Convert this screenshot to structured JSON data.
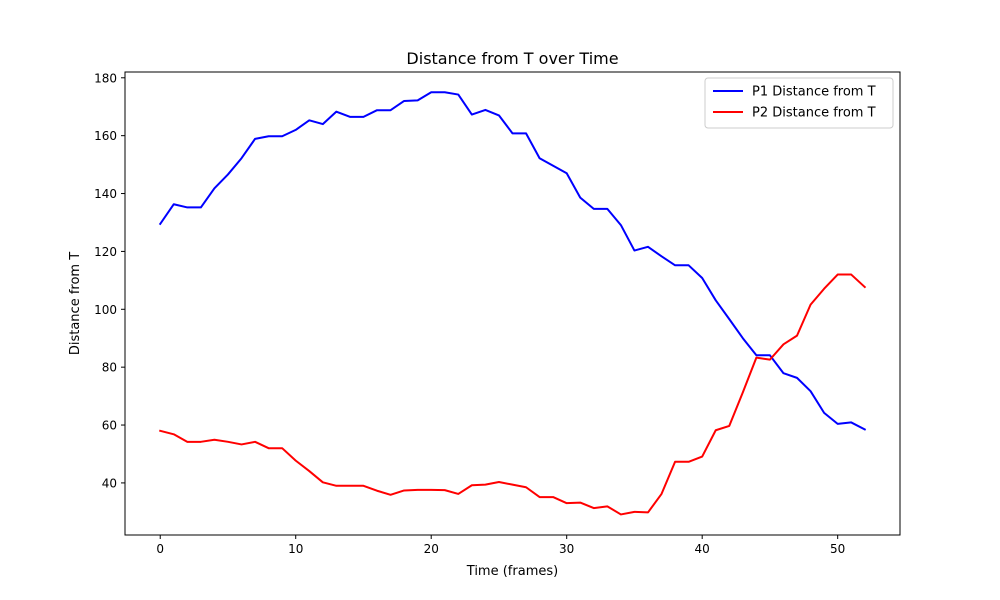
{
  "chart_data": {
    "type": "line",
    "title": "Distance from T over Time",
    "xlabel": "Time (frames)",
    "ylabel": "Distance from T",
    "xlim": [
      -2.6,
      54.6
    ],
    "ylim": [
      22.0,
      182.0
    ],
    "xticks": [
      0,
      10,
      20,
      30,
      40,
      50
    ],
    "yticks": [
      40,
      60,
      80,
      100,
      120,
      140,
      160,
      180
    ],
    "grid": false,
    "legend_position": "top-right",
    "x": [
      0,
      1,
      2,
      3,
      4,
      5,
      6,
      7,
      8,
      9,
      10,
      11,
      12,
      13,
      14,
      15,
      16,
      17,
      18,
      19,
      20,
      21,
      22,
      23,
      24,
      25,
      26,
      27,
      28,
      29,
      30,
      31,
      32,
      33,
      34,
      35,
      36,
      37,
      38,
      39,
      40,
      41,
      42,
      43,
      44,
      45,
      46,
      47,
      48,
      49,
      50,
      51,
      52
    ],
    "series": [
      {
        "name": "P1 Distance from T",
        "color": "#0000ff",
        "values": [
          129.5,
          136.3,
          135.2,
          135.2,
          141.8,
          146.6,
          152.2,
          158.9,
          159.8,
          159.8,
          162.0,
          165.3,
          164.0,
          168.3,
          166.5,
          166.5,
          168.8,
          168.8,
          172.0,
          172.2,
          175.0,
          175.0,
          174.2,
          167.3,
          168.9,
          167.0,
          160.8,
          160.8,
          152.2,
          149.6,
          147.0,
          138.6,
          134.7,
          134.7,
          129.1,
          120.3,
          121.6,
          118.3,
          115.2,
          115.2,
          110.8,
          103.1,
          96.6,
          90.0,
          84.1,
          84.1,
          77.9,
          76.3,
          71.7,
          64.2,
          60.4,
          60.9,
          58.5
        ]
      },
      {
        "name": "P2 Distance from T",
        "color": "#ff0000",
        "values": [
          58.0,
          56.8,
          54.2,
          54.2,
          54.9,
          54.2,
          53.3,
          54.2,
          52.0,
          52.0,
          47.7,
          44.1,
          40.2,
          39.0,
          39.0,
          39.0,
          37.3,
          35.9,
          37.4,
          37.6,
          37.6,
          37.5,
          36.2,
          39.2,
          39.4,
          40.3,
          39.4,
          38.5,
          35.1,
          35.1,
          33.0,
          33.2,
          31.3,
          31.9,
          29.1,
          30.0,
          29.8,
          36.2,
          47.3,
          47.3,
          49.1,
          58.2,
          59.7,
          71.3,
          83.3,
          82.6,
          87.9,
          90.9,
          101.6,
          107.1,
          112.0,
          112.0,
          107.7
        ]
      }
    ]
  }
}
